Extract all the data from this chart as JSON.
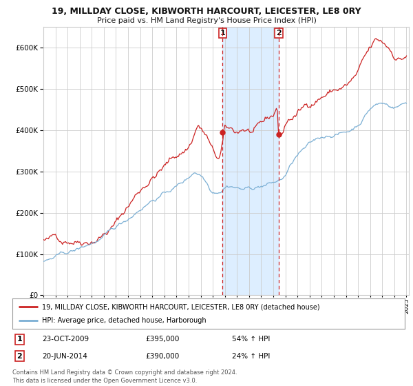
{
  "title": "19, MILLDAY CLOSE, KIBWORTH HARCOURT, LEICESTER, LE8 0RY",
  "subtitle": "Price paid vs. HM Land Registry's House Price Index (HPI)",
  "hpi_label": "HPI: Average price, detached house, Harborough",
  "property_label": "19, MILLDAY CLOSE, KIBWORTH HARCOURT, LEICESTER, LE8 0RY (detached house)",
  "footer1": "Contains HM Land Registry data © Crown copyright and database right 2024.",
  "footer2": "This data is licensed under the Open Government Licence v3.0.",
  "transaction1": {
    "num": "1",
    "date": "23-OCT-2009",
    "price": "£395,000",
    "hpi": "54% ↑ HPI"
  },
  "transaction2": {
    "num": "2",
    "date": "20-JUN-2014",
    "price": "£390,000",
    "hpi": "24% ↑ HPI"
  },
  "sale1_year": 2009.81,
  "sale1_value": 395000,
  "sale2_year": 2014.47,
  "sale2_value": 390000,
  "shade1_start": 2009.81,
  "shade1_end": 2014.47,
  "ylim": [
    0,
    650000
  ],
  "yticks": [
    0,
    100000,
    200000,
    300000,
    400000,
    500000,
    600000
  ],
  "xlim_start": 1995.0,
  "xlim_end": 2025.2,
  "background_color": "#ffffff",
  "hpi_color": "#7bafd4",
  "property_color": "#cc2222",
  "shade_color": "#ddeeff",
  "vline_color": "#cc2222",
  "grid_color": "#cccccc",
  "legend_border_color": "#999999"
}
